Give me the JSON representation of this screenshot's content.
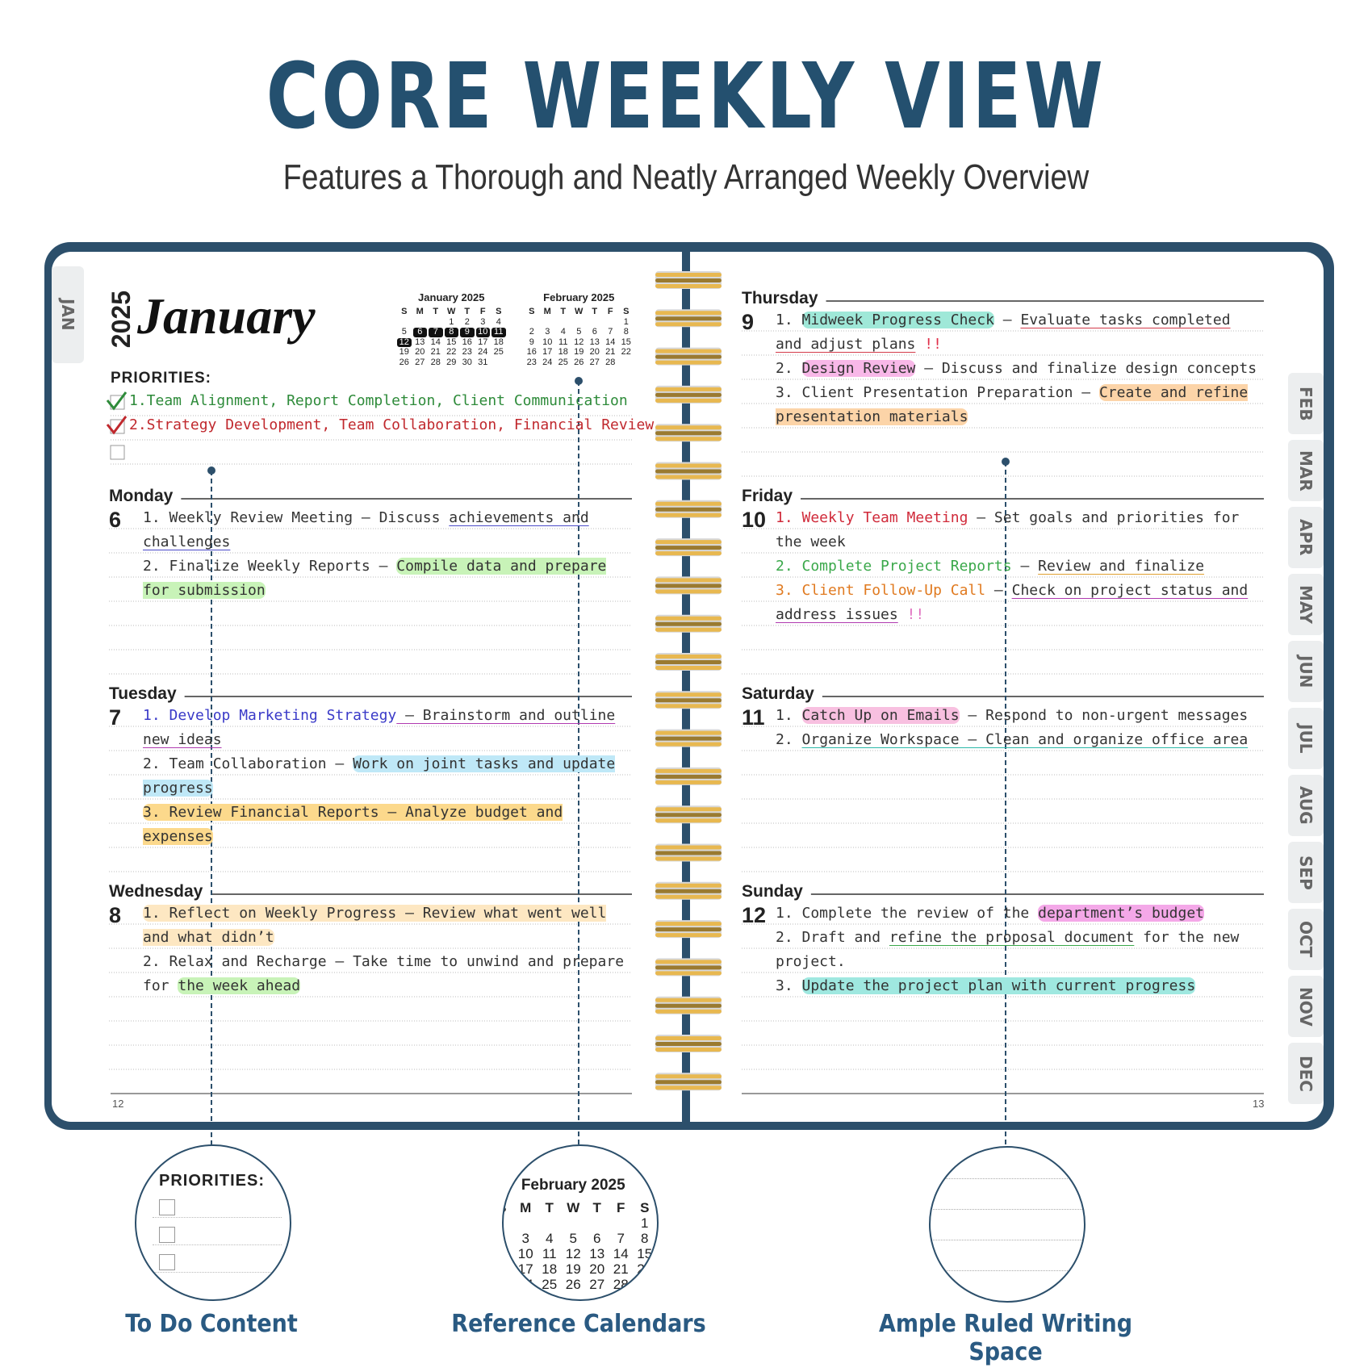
{
  "header": {
    "title": "CORE WEEKLY VIEW",
    "subtitle": "Features a Thorough and Neatly Arranged Weekly Overview"
  },
  "planner": {
    "left_tab": "JAN",
    "year": "2025",
    "month": "January",
    "calendars": [
      {
        "title": "January 2025",
        "weekdays": [
          "S",
          "M",
          "T",
          "W",
          "T",
          "F",
          "S"
        ],
        "weeks": [
          [
            null,
            null,
            null,
            1,
            2,
            3,
            4
          ],
          [
            5,
            6,
            7,
            8,
            9,
            10,
            11
          ],
          [
            12,
            13,
            14,
            15,
            16,
            17,
            18
          ],
          [
            19,
            20,
            21,
            22,
            23,
            24,
            25
          ],
          [
            26,
            27,
            28,
            29,
            30,
            31,
            null
          ]
        ],
        "highlighted": [
          6,
          7,
          8,
          9,
          10,
          11,
          12
        ]
      },
      {
        "title": "February 2025",
        "weekdays": [
          "S",
          "M",
          "T",
          "W",
          "T",
          "F",
          "S"
        ],
        "weeks": [
          [
            null,
            null,
            null,
            null,
            null,
            null,
            1
          ],
          [
            2,
            3,
            4,
            5,
            6,
            7,
            8
          ],
          [
            9,
            10,
            11,
            12,
            13,
            14,
            15
          ],
          [
            16,
            17,
            18,
            19,
            20,
            21,
            22
          ],
          [
            23,
            24,
            25,
            26,
            27,
            28,
            null
          ]
        ]
      }
    ],
    "priorities": {
      "label": "PRIORITIES:",
      "items": [
        {
          "text": "1.Team Alignment, Report Completion, Client Communication",
          "color": "#2e8b3a"
        },
        {
          "text": "2.Strategy Development, Team Collaboration, Financial Review",
          "color": "#c0282d"
        }
      ]
    },
    "days": [
      {
        "name": "Monday",
        "number": 6,
        "items": [
          [
            {
              "text": "1. Weekly Review Meeting – Discuss "
            },
            {
              "text": "achievements and challenges",
              "ul": "#4a4ac8"
            }
          ],
          [
            {
              "text": "2. Finalize Weekly Reports – "
            },
            {
              "text": "Compile data and prepare for submission",
              "hl": "#c8f3b8"
            }
          ]
        ]
      },
      {
        "name": "Tuesday",
        "number": 7,
        "items": [
          [
            {
              "text": "1. Develop Marketing Strategy",
              "color": "#3a3ac8"
            },
            {
              "text": " – Brainstorm and outline new ideas",
              "ul": "#b03ab0"
            }
          ],
          [
            {
              "text": "2. Team Collaboration – "
            },
            {
              "text": "Work on joint tasks and update progress",
              "hl": "#bfe8f7"
            }
          ],
          [
            {
              "text": "3. Review Financial Reports – Analyze budget and expenses",
              "hl": "#fcd98c"
            }
          ]
        ]
      },
      {
        "name": "Wednesday",
        "number": 8,
        "items": [
          [
            {
              "text": "1. Reflect on Weekly Progress – Review what went well and what didn’t",
              "hl": "#fde7c2"
            }
          ],
          [
            {
              "text": "2. Relax and Recharge – Take time to unwind and prepare for "
            },
            {
              "text": "the week ahead",
              "hl": "#c8f3b8"
            }
          ]
        ]
      },
      {
        "name": "Thursday",
        "number": 9,
        "items": [
          [
            {
              "text": "1. "
            },
            {
              "text": "Midweek Progress Check",
              "hl": "#9fe8d8"
            },
            {
              "text": " – "
            },
            {
              "text": "Evaluate tasks completed and adjust plans",
              "ul": "#d43a4a"
            },
            {
              "text": " !!",
              "color": "#e0304a"
            }
          ],
          [
            {
              "text": "2. "
            },
            {
              "text": "Design Review",
              "hl": "#f8b8e8"
            },
            {
              "text": " – Discuss and finalize design concepts"
            }
          ],
          [
            {
              "text": "3. Client Presentation Preparation – "
            },
            {
              "text": "Create and refine presentation materials",
              "hl": "#fcd4a8"
            }
          ]
        ]
      },
      {
        "name": "Friday",
        "number": 10,
        "items": [
          [
            {
              "text": "1. Weekly Team Meeting",
              "color": "#d02a3a"
            },
            {
              "text": " – Set goals and priorities for the week"
            }
          ],
          [
            {
              "text": "2. Complete Project Reports",
              "color": "#3aa84a"
            },
            {
              "text": " – "
            },
            {
              "text": "Review and finalize",
              "ul": "#e0a030"
            }
          ],
          [
            {
              "text": "3. Client Follow-Up Call",
              "color": "#e07a20"
            },
            {
              "text": " – "
            },
            {
              "text": "Check on project status and address issues",
              "ul": "#b03ab0"
            },
            {
              "text": " !!",
              "color": "#e070c0"
            }
          ]
        ]
      },
      {
        "name": "Saturday",
        "number": 11,
        "items": [
          [
            {
              "text": "1. "
            },
            {
              "text": "Catch Up on Emails",
              "hl": "#f8c0e0"
            },
            {
              "text": " – Respond to non-urgent messages"
            }
          ],
          [
            {
              "text": "2. "
            },
            {
              "text": "Organize Workspace – Clean and organize office area",
              "ul": "#2ab8a8"
            }
          ]
        ]
      },
      {
        "name": "Sunday",
        "number": 12,
        "items": [
          [
            {
              "text": "1. Complete the review of the "
            },
            {
              "text": "department’s budget",
              "hl": "#f4a8e8"
            }
          ],
          [
            {
              "text": "2. Draft and "
            },
            {
              "text": "refine the proposal document",
              "ul": "#3aa84a"
            },
            {
              "text": " for the new project."
            }
          ],
          [
            {
              "text": "3. "
            },
            {
              "text": "Update the project plan with current progress",
              "hl": "#9fe8e0"
            }
          ]
        ]
      }
    ],
    "page_numbers": [
      12,
      13
    ],
    "right_tabs": [
      "FEB",
      "MAR",
      "APR",
      "MAY",
      "JUN",
      "JUL",
      "AUG",
      "SEP",
      "OCT",
      "NOV",
      "DEC"
    ]
  },
  "callouts": [
    {
      "label": "To Do Content"
    },
    {
      "label": "Reference Calendars"
    },
    {
      "label": "Ample Ruled Writing Space"
    }
  ]
}
